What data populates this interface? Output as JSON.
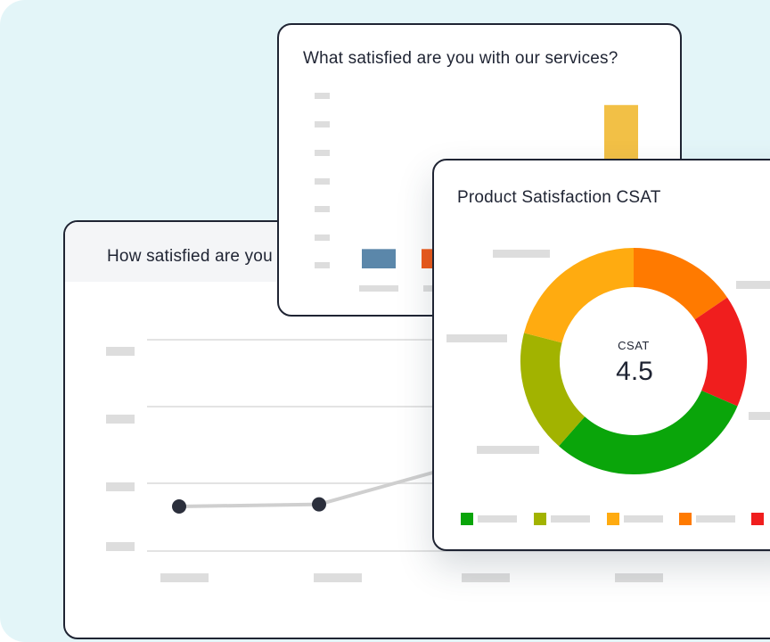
{
  "cards": {
    "line": {
      "title": "How satisfied are you"
    },
    "bar": {
      "title": "What satisfied are you with our services?"
    },
    "donut": {
      "title": "Product Satisfaction CSAT",
      "center_label": "CSAT",
      "center_value": "4.5"
    }
  },
  "chart_data": [
    {
      "type": "line",
      "title": "How satisfied are you",
      "points": [
        1,
        1.02,
        1.35
      ],
      "color": "#cfcfcf",
      "marker_color": "#2b2f3c",
      "grid": true
    },
    {
      "type": "bar",
      "title": "What satisfied are you with our services?",
      "values": [
        0.11,
        0.11,
        0.05,
        0.93
      ],
      "colors": [
        "#5b87aa",
        "#ef5a1a",
        "#f0b13c",
        "#f2c046"
      ],
      "grid": false
    },
    {
      "type": "pie",
      "title": "Product Satisfaction CSAT",
      "center_label": "CSAT",
      "center_value": "4.5",
      "slices": [
        {
          "value": 15.5,
          "color": "#ff7a00"
        },
        {
          "value": 16.0,
          "color": "#f01e1e"
        },
        {
          "value": 30.0,
          "color": "#0aa50a"
        },
        {
          "value": 17.5,
          "color": "#a2b300"
        },
        {
          "value": 21.0,
          "color": "#ffab10"
        }
      ]
    }
  ],
  "legend": [
    {
      "color": "#0aa50a",
      "icon": "green-swatch-icon"
    },
    {
      "color": "#a2b300",
      "icon": "olive-swatch-icon"
    },
    {
      "color": "#ffab10",
      "icon": "amber-swatch-icon"
    },
    {
      "color": "#ff7a00",
      "icon": "orange-swatch-icon"
    },
    {
      "color": "#f01e1e",
      "icon": "red-swatch-icon"
    }
  ]
}
